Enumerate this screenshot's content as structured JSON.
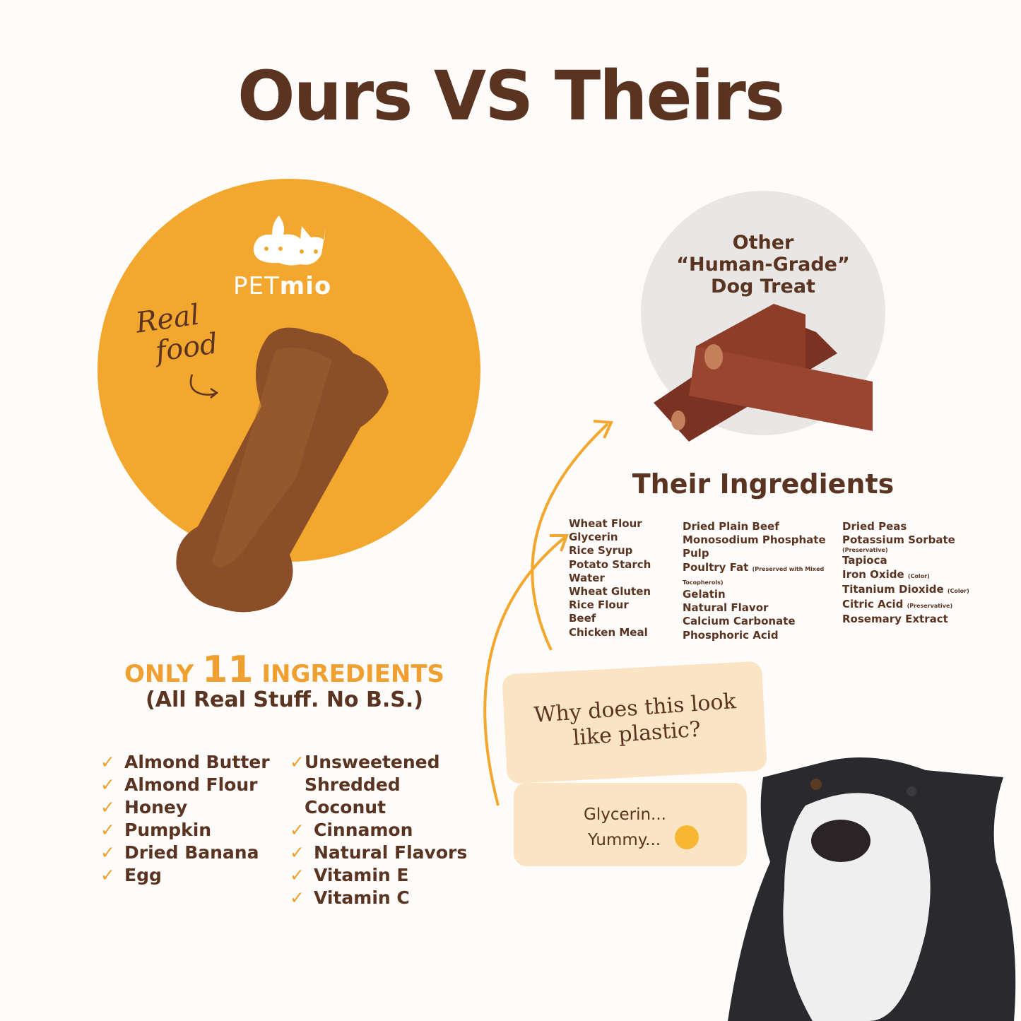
{
  "title": "Ours VS Theirs",
  "ours": {
    "brand_light": "PET",
    "brand_bold": "mio",
    "tagline_line1": "Real",
    "tagline_line2": "food",
    "only_prefix": "ONLY",
    "count": "11",
    "only_suffix": "INGREDIENTS",
    "subtitle": "(All Real Stuff. No B.S.)",
    "ingredients_col1": [
      "Almond Butter",
      "Almond Flour",
      "Honey",
      "Pumpkin",
      "Dried Banana",
      "Egg"
    ],
    "ingredients_col2": [
      "Unsweetened Shredded Coconut",
      "Cinnamon",
      "Natural Flavors",
      "Vitamin E",
      "Vitamin C"
    ]
  },
  "theirs": {
    "title_line1": "Other",
    "title_line2": "“Human-Grade”",
    "title_line3": "Dog Treat",
    "heading": "Their Ingredients",
    "col1": [
      {
        "name": "Wheat Flour"
      },
      {
        "name": "Glycerin"
      },
      {
        "name": "Rice Syrup"
      },
      {
        "name": "Potato Starch"
      },
      {
        "name": "Water"
      },
      {
        "name": "Wheat Gluten"
      },
      {
        "name": "Rice Flour"
      },
      {
        "name": "Beef"
      },
      {
        "name": "Chicken Meal"
      }
    ],
    "col2": [
      {
        "name": "Dried Plain Beef"
      },
      {
        "name": "Monosodium Phosphate"
      },
      {
        "name": "Pulp"
      },
      {
        "name": "Poultry Fat",
        "note": "(Preserved with Mixed Tocopherols)"
      },
      {
        "name": "Gelatin"
      },
      {
        "name": "Natural Flavor"
      },
      {
        "name": "Calcium Carbonate"
      },
      {
        "name": "Phosphoric Acid"
      }
    ],
    "col3": [
      {
        "name": "Dried Peas"
      },
      {
        "name": "Potassium Sorbate",
        "note": "(Preservative)",
        "note_block": true
      },
      {
        "name": "Tapioca"
      },
      {
        "name": "Iron Oxide",
        "note": "(Color)"
      },
      {
        "name": "Titanium Dioxide",
        "note": "(Color)"
      },
      {
        "name": "Citric Acid",
        "note": "(Preservative)"
      },
      {
        "name": "Rosemary Extract"
      }
    ]
  },
  "bubbles": {
    "question": "Why does this look like plastic?",
    "answer_line1": "Glycerin...",
    "answer_line2": "Yummy..."
  },
  "colors": {
    "brown": "#5a3420",
    "orange": "#f3a72e",
    "accent_text": "#f0a030",
    "bubble": "#fbe4c4",
    "grey_circle": "#e9e7e6"
  },
  "icons": {
    "check": "✓",
    "logo": "dog-and-cat-logo",
    "emoji": "unamused-face"
  }
}
